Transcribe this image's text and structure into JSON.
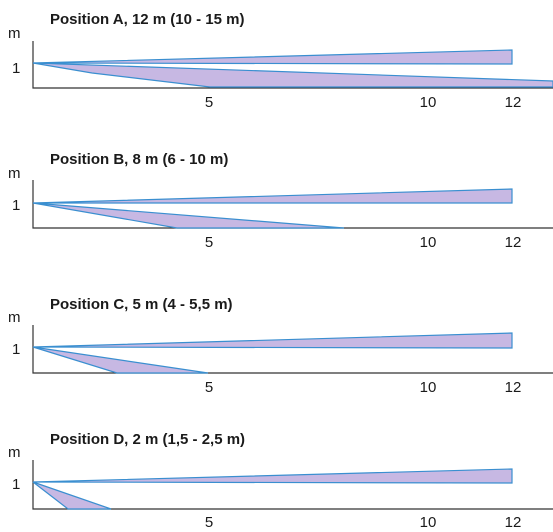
{
  "colors": {
    "beam_fill": "#c7b8e3",
    "beam_stroke": "#3a8fd0",
    "axis": "#333333"
  },
  "axis_unit": "m",
  "y_label": "1",
  "x_tick_labels": [
    "5",
    "10",
    "12"
  ],
  "panels": [
    {
      "title": "Position A, 12 m (10 - 15 m)"
    },
    {
      "title": "Position B, 8 m (6 - 10 m)"
    },
    {
      "title": "Position C, 5 m (4 - 5,5 m)"
    },
    {
      "title": "Position D, 2 m (1,5 - 2,5 m)"
    }
  ]
}
